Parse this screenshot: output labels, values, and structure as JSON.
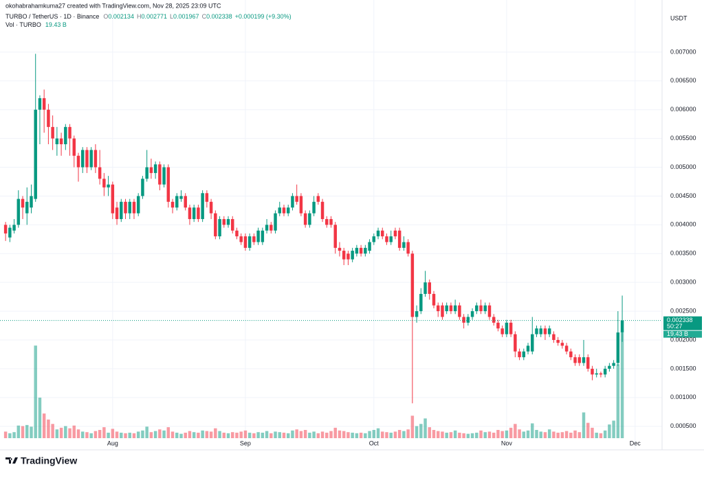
{
  "header": {
    "credit": "okohabrahamkuma27 created with TradingView.com, Nov 28, 2025 23:09 UTC",
    "symbol": "TURBO / TetherUS · 1D · Binance",
    "open_label": "O",
    "high_label": "H",
    "low_label": "L",
    "close_label": "C",
    "change": "+0.000199 (+9.30%)",
    "vol_label": "Vol · TURBO",
    "vol_value": "19.43 B",
    "countdown": "50:27"
  },
  "footer": {
    "logo_text": "TradingView"
  },
  "chart_data": {
    "type": "candlestick",
    "y_axis_label": "USDT",
    "up_color": "#089981",
    "down_color": "#f23645",
    "grid": true,
    "ylim": [
      0.000294,
      0.00781
    ],
    "yticks": [
      {
        "value": 0.0005,
        "label": "0.000500"
      },
      {
        "value": 0.001,
        "label": "0.001000"
      },
      {
        "value": 0.0015,
        "label": "0.001500"
      },
      {
        "value": 0.002,
        "label": "0.002000"
      },
      {
        "value": 0.0025,
        "label": "0.002500"
      },
      {
        "value": 0.003,
        "label": "0.003000"
      },
      {
        "value": 0.0035,
        "label": "0.003500"
      },
      {
        "value": 0.004,
        "label": "0.004000"
      },
      {
        "value": 0.0045,
        "label": "0.004500"
      },
      {
        "value": 0.005,
        "label": "0.005000"
      },
      {
        "value": 0.0055,
        "label": "0.005500"
      },
      {
        "value": 0.006,
        "label": "0.006000"
      },
      {
        "value": 0.0065,
        "label": "0.006500"
      },
      {
        "value": 0.007,
        "label": "0.007000"
      }
    ],
    "xlim": [
      -0.5,
      153.3
    ],
    "xticks": [
      {
        "value": 25,
        "label": "Aug"
      },
      {
        "value": 56,
        "label": "Sep"
      },
      {
        "value": 86,
        "label": "Oct"
      },
      {
        "value": 117,
        "label": "Nov"
      },
      {
        "value": 147,
        "label": "Dec"
      }
    ],
    "open": [
      0.004,
      0.00378,
      0.0039,
      0.004,
      0.00445,
      0.0042,
      0.0043,
      0.00445,
      0.006,
      0.0062,
      0.006,
      0.0057,
      0.0054,
      0.0055,
      0.0054,
      0.0057,
      0.0055,
      0.0052,
      0.005,
      0.0053,
      0.005,
      0.0053,
      0.005,
      0.0048,
      0.00465,
      0.0047,
      0.0043,
      0.0041,
      0.0044,
      0.0042,
      0.0044,
      0.0042,
      0.0045,
      0.0048,
      0.005,
      0.0049,
      0.00505,
      0.0047,
      0.005,
      0.0044,
      0.0043,
      0.00445,
      0.0045,
      0.0043,
      0.0041,
      0.0043,
      0.0041,
      0.00455,
      0.0044,
      0.0042,
      0.0038,
      0.0041,
      0.004,
      0.0041,
      0.0039,
      0.0038,
      0.0038,
      0.0036,
      0.0038,
      0.0037,
      0.0037,
      0.0039,
      0.004,
      0.0039,
      0.0042,
      0.0043,
      0.0042,
      0.0043,
      0.0045,
      0.0045,
      0.0042,
      0.004,
      0.0042,
      0.0045,
      0.0044,
      0.0041,
      0.0041,
      0.004,
      0.0036,
      0.00355,
      0.0035,
      0.0034,
      0.0035,
      0.0036,
      0.0035,
      0.00355,
      0.0037,
      0.0038,
      0.0039,
      0.0038,
      0.0037,
      0.0039,
      0.0039,
      0.0036,
      0.0037,
      0.0035,
      0.0024,
      0.0025,
      0.0028,
      0.003,
      0.0028,
      0.0026,
      0.0026,
      0.0025,
      0.0026,
      0.0025,
      0.0026,
      0.0024,
      0.0023,
      0.0024,
      0.0025,
      0.0026,
      0.0025,
      0.0026,
      0.0024,
      0.0023,
      0.0022,
      0.0021,
      0.0023,
      0.0021,
      0.0018,
      0.0017,
      0.0018,
      0.0018,
      0.0021,
      0.0021,
      0.0022,
      0.0021,
      0.0021,
      0.002,
      0.00195,
      0.0019,
      0.0018,
      0.0017,
      0.0017,
      0.0016,
      0.0017,
      0.0015,
      0.0014,
      0.00142,
      0.0014,
      0.0015,
      0.00155,
      0.0016,
      0.002134
    ],
    "high": [
      0.00405,
      0.004,
      0.0041,
      0.0046,
      0.0045,
      0.00465,
      0.0047,
      0.00697,
      0.00625,
      0.00635,
      0.0061,
      0.0059,
      0.0057,
      0.0056,
      0.00575,
      0.00575,
      0.00555,
      0.00525,
      0.00535,
      0.00535,
      0.00535,
      0.0054,
      0.0053,
      0.0049,
      0.00485,
      0.00475,
      0.0044,
      0.00445,
      0.00445,
      0.00445,
      0.00445,
      0.00455,
      0.00485,
      0.0053,
      0.00515,
      0.0051,
      0.0051,
      0.00505,
      0.00505,
      0.00445,
      0.00455,
      0.0046,
      0.00455,
      0.00435,
      0.00435,
      0.00435,
      0.0046,
      0.0046,
      0.00445,
      0.00425,
      0.00415,
      0.00415,
      0.00415,
      0.00415,
      0.00395,
      0.00385,
      0.00385,
      0.00385,
      0.00385,
      0.00395,
      0.00395,
      0.0041,
      0.00405,
      0.00425,
      0.0044,
      0.00435,
      0.00435,
      0.00455,
      0.0047,
      0.00455,
      0.00425,
      0.00425,
      0.0045,
      0.00455,
      0.00445,
      0.00415,
      0.00415,
      0.00405,
      0.0037,
      0.0036,
      0.00355,
      0.0036,
      0.00365,
      0.00365,
      0.00365,
      0.00375,
      0.00385,
      0.00395,
      0.00395,
      0.00385,
      0.0039,
      0.00395,
      0.00395,
      0.0038,
      0.00375,
      0.00355,
      0.0026,
      0.0029,
      0.0032,
      0.00305,
      0.00285,
      0.00265,
      0.00265,
      0.00265,
      0.00265,
      0.0027,
      0.00265,
      0.00245,
      0.00245,
      0.00255,
      0.00265,
      0.0027,
      0.00265,
      0.00265,
      0.00245,
      0.00235,
      0.00225,
      0.00235,
      0.00235,
      0.00215,
      0.00185,
      0.00185,
      0.00195,
      0.0024,
      0.00225,
      0.00225,
      0.00225,
      0.00225,
      0.00215,
      0.00205,
      0.002,
      0.00195,
      0.00185,
      0.00175,
      0.00175,
      0.002,
      0.00175,
      0.00155,
      0.0015,
      0.00145,
      0.00155,
      0.0016,
      0.00165,
      0.0025,
      0.002771
    ],
    "low": [
      0.00372,
      0.0037,
      0.00385,
      0.00395,
      0.0041,
      0.004,
      0.0042,
      0.0044,
      0.0054,
      0.0056,
      0.0054,
      0.0053,
      0.0052,
      0.0052,
      0.0053,
      0.0052,
      0.005,
      0.00475,
      0.0049,
      0.0049,
      0.00495,
      0.0049,
      0.0047,
      0.0045,
      0.0045,
      0.0041,
      0.004,
      0.00405,
      0.0041,
      0.0041,
      0.0041,
      0.00415,
      0.00445,
      0.00475,
      0.0048,
      0.0048,
      0.0046,
      0.00465,
      0.0043,
      0.0042,
      0.00425,
      0.0044,
      0.00425,
      0.004,
      0.00405,
      0.00405,
      0.00405,
      0.0043,
      0.0041,
      0.00375,
      0.00375,
      0.00395,
      0.00395,
      0.00385,
      0.00375,
      0.00365,
      0.00355,
      0.00355,
      0.00365,
      0.00365,
      0.00365,
      0.00385,
      0.00385,
      0.00385,
      0.00415,
      0.00415,
      0.00415,
      0.00425,
      0.00435,
      0.00415,
      0.00395,
      0.00395,
      0.00415,
      0.00435,
      0.00405,
      0.00395,
      0.00395,
      0.0035,
      0.00345,
      0.0033,
      0.0033,
      0.00335,
      0.00345,
      0.00345,
      0.00345,
      0.0035,
      0.00365,
      0.00375,
      0.00375,
      0.00365,
      0.00365,
      0.00375,
      0.00355,
      0.00355,
      0.00345,
      0.0009,
      0.0023,
      0.00245,
      0.00275,
      0.0027,
      0.00255,
      0.0024,
      0.00235,
      0.00245,
      0.00245,
      0.00245,
      0.00235,
      0.0022,
      0.00225,
      0.00235,
      0.00245,
      0.00245,
      0.00245,
      0.00235,
      0.00225,
      0.00215,
      0.00205,
      0.00205,
      0.00205,
      0.0017,
      0.00165,
      0.00165,
      0.00175,
      0.00175,
      0.00205,
      0.00205,
      0.002,
      0.00205,
      0.00195,
      0.0019,
      0.00185,
      0.00175,
      0.00165,
      0.00155,
      0.00155,
      0.00155,
      0.00145,
      0.0013,
      0.00135,
      0.00135,
      0.00135,
      0.00145,
      0.0015,
      0.00155,
      0.001967
    ],
    "close": [
      0.00385,
      0.00395,
      0.004,
      0.00445,
      0.0043,
      0.0044,
      0.0045,
      0.006,
      0.0062,
      0.006,
      0.0057,
      0.0055,
      0.0055,
      0.0054,
      0.0057,
      0.0055,
      0.0052,
      0.005,
      0.0053,
      0.005,
      0.0053,
      0.005,
      0.0048,
      0.00465,
      0.0047,
      0.0042,
      0.0041,
      0.0044,
      0.0042,
      0.0044,
      0.0042,
      0.0045,
      0.0048,
      0.005,
      0.0049,
      0.00505,
      0.0047,
      0.005,
      0.0044,
      0.0043,
      0.0045,
      0.0045,
      0.0043,
      0.0041,
      0.0043,
      0.0041,
      0.00455,
      0.0044,
      0.0042,
      0.0038,
      0.0041,
      0.004,
      0.0041,
      0.0039,
      0.0038,
      0.0037,
      0.0036,
      0.0038,
      0.0037,
      0.0039,
      0.0039,
      0.004,
      0.0039,
      0.0042,
      0.0043,
      0.0042,
      0.0043,
      0.0045,
      0.0044,
      0.0042,
      0.004,
      0.0042,
      0.0044,
      0.0044,
      0.0041,
      0.004,
      0.004,
      0.0036,
      0.00355,
      0.0034,
      0.0034,
      0.00355,
      0.0036,
      0.0035,
      0.0036,
      0.0037,
      0.0038,
      0.0039,
      0.0038,
      0.0037,
      0.0038,
      0.0038,
      0.0036,
      0.0037,
      0.0035,
      0.0024,
      0.0025,
      0.0028,
      0.003,
      0.0028,
      0.0026,
      0.0025,
      0.0024,
      0.0026,
      0.0025,
      0.0026,
      0.0024,
      0.0023,
      0.0024,
      0.0025,
      0.0026,
      0.0025,
      0.0026,
      0.0024,
      0.0023,
      0.0022,
      0.0021,
      0.0023,
      0.0021,
      0.0018,
      0.0017,
      0.0018,
      0.0019,
      0.0021,
      0.0022,
      0.0022,
      0.0021,
      0.0022,
      0.002,
      0.00195,
      0.0019,
      0.0018,
      0.0017,
      0.0016,
      0.0016,
      0.0017,
      0.0015,
      0.0014,
      0.00142,
      0.0014,
      0.0015,
      0.00155,
      0.0016,
      0.00213,
      0.002338
    ],
    "volume": [
      1.2,
      0.9,
      1.1,
      2.3,
      2.2,
      2.4,
      2.1,
      16.9,
      7.4,
      4.5,
      3.4,
      2.6,
      1.6,
      1.9,
      2.2,
      1.8,
      2.3,
      1.6,
      1.2,
      1.1,
      0.9,
      1.3,
      1.5,
      2.0,
      1.0,
      1.7,
      1.2,
      1.0,
      0.9,
      1.0,
      0.9,
      1.2,
      1.4,
      2.1,
      1.1,
      1.3,
      1.6,
      1.4,
      2.0,
      1.2,
      1.0,
      0.8,
      1.0,
      1.3,
      1.1,
      1.0,
      1.4,
      1.3,
      1.2,
      1.8,
      1.3,
      1.0,
      0.9,
      1.1,
      1.0,
      1.2,
      1.4,
      1.0,
      0.9,
      1.1,
      1.0,
      1.3,
      0.9,
      1.2,
      1.1,
      1.0,
      0.9,
      1.4,
      1.6,
      1.3,
      1.5,
      1.0,
      1.2,
      0.9,
      1.2,
      1.0,
      1.3,
      1.9,
      1.4,
      1.3,
      1.1,
      1.0,
      0.9,
      1.0,
      0.9,
      1.3,
      1.5,
      1.8,
      1.2,
      1.1,
      1.0,
      1.2,
      1.5,
      1.3,
      1.6,
      4.1,
      2.2,
      2.6,
      3.6,
      2.0,
      1.5,
      1.3,
      1.2,
      1.0,
      1.1,
      1.4,
      1.0,
      0.9,
      0.8,
      0.9,
      1.0,
      1.4,
      1.1,
      1.2,
      1.0,
      1.5,
      1.3,
      1.4,
      1.9,
      2.6,
      1.6,
      1.2,
      1.4,
      2.7,
      1.5,
      1.2,
      1.1,
      1.6,
      1.2,
      1.0,
      1.1,
      1.3,
      1.0,
      1.4,
      1.1,
      4.7,
      2.8,
      1.9,
      1.0,
      0.9,
      1.4,
      2.5,
      3.2,
      13.5,
      19.43
    ]
  }
}
